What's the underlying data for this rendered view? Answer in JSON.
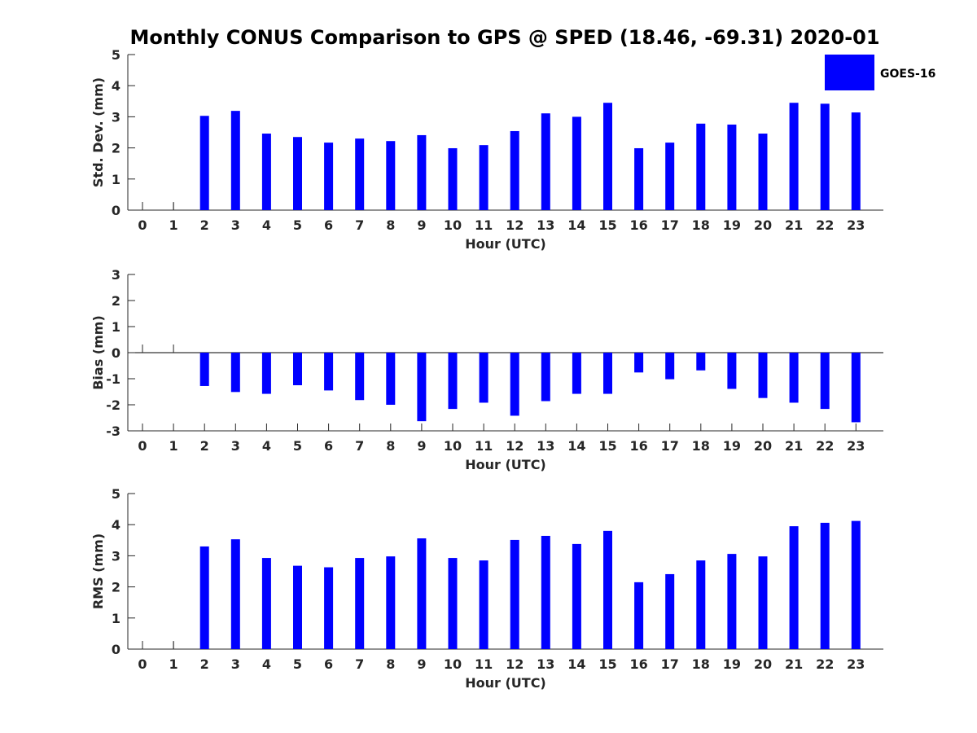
{
  "title": "Monthly CONUS Comparison to GPS @ SPED (18.46, -69.31) 2020-01",
  "legend": {
    "label": "GOES-16",
    "color": "#0000ff",
    "placement": "top-right"
  },
  "chart_data": [
    {
      "type": "bar",
      "xlabel": "Hour (UTC)",
      "ylabel": "Std. Dev. (mm)",
      "ylim": [
        0,
        5
      ],
      "yticks": [
        0,
        1,
        2,
        3,
        4,
        5
      ],
      "categories": [
        "0",
        "1",
        "2",
        "3",
        "4",
        "5",
        "6",
        "7",
        "8",
        "9",
        "10",
        "11",
        "12",
        "13",
        "14",
        "15",
        "16",
        "17",
        "18",
        "19",
        "20",
        "21",
        "22",
        "23"
      ],
      "series": [
        {
          "name": "GOES-16",
          "values": [
            null,
            null,
            3.03,
            3.19,
            2.46,
            2.35,
            2.17,
            2.3,
            2.22,
            2.41,
            1.99,
            2.09,
            2.54,
            3.11,
            3.0,
            3.45,
            1.99,
            2.17,
            2.78,
            2.75,
            2.46,
            3.45,
            3.42,
            3.14
          ]
        }
      ]
    },
    {
      "type": "bar",
      "xlabel": "Hour (UTC)",
      "ylabel": "Bias (mm)",
      "ylim": [
        -3,
        3
      ],
      "yticks": [
        -3,
        -2,
        -1,
        0,
        1,
        2,
        3
      ],
      "categories": [
        "0",
        "1",
        "2",
        "3",
        "4",
        "5",
        "6",
        "7",
        "8",
        "9",
        "10",
        "11",
        "12",
        "13",
        "14",
        "15",
        "16",
        "17",
        "18",
        "19",
        "20",
        "21",
        "22",
        "23"
      ],
      "series": [
        {
          "name": "GOES-16",
          "values": [
            null,
            null,
            -1.28,
            -1.51,
            -1.58,
            -1.25,
            -1.45,
            -1.82,
            -2.0,
            -2.63,
            -2.16,
            -1.92,
            -2.42,
            -1.86,
            -1.58,
            -1.58,
            -0.76,
            -1.02,
            -0.68,
            -1.39,
            -1.74,
            -1.92,
            -2.16,
            -2.67
          ]
        }
      ]
    },
    {
      "type": "bar",
      "xlabel": "Hour (UTC)",
      "ylabel": "RMS (mm)",
      "ylim": [
        0,
        5
      ],
      "yticks": [
        0,
        1,
        2,
        3,
        4,
        5
      ],
      "categories": [
        "0",
        "1",
        "2",
        "3",
        "4",
        "5",
        "6",
        "7",
        "8",
        "9",
        "10",
        "11",
        "12",
        "13",
        "14",
        "15",
        "16",
        "17",
        "18",
        "19",
        "20",
        "21",
        "22",
        "23"
      ],
      "series": [
        {
          "name": "GOES-16",
          "values": [
            null,
            null,
            3.3,
            3.53,
            2.93,
            2.68,
            2.63,
            2.93,
            2.98,
            3.56,
            2.93,
            2.85,
            3.51,
            3.64,
            3.38,
            3.8,
            2.15,
            2.41,
            2.85,
            3.06,
            2.98,
            3.95,
            4.06,
            4.12
          ]
        }
      ]
    }
  ]
}
